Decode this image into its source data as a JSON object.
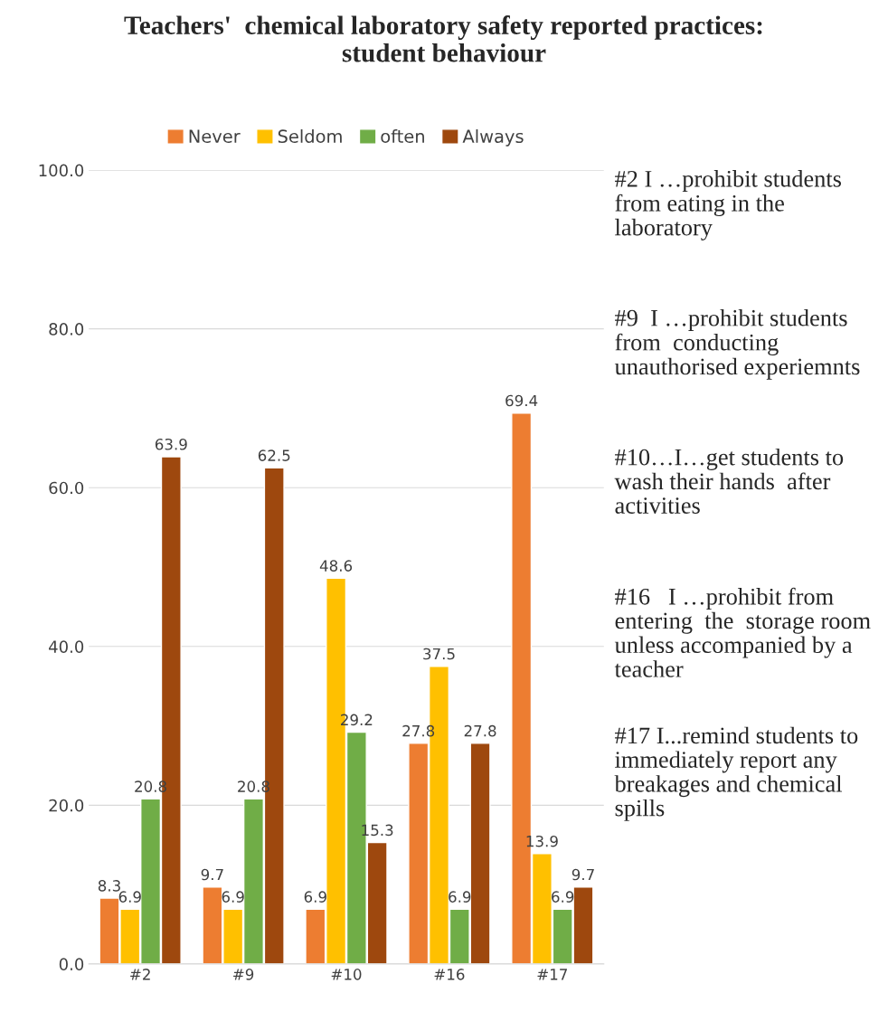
{
  "chart_data": {
    "type": "bar",
    "title": "Teachers'  chemical laboratory safety reported practices: student behaviour",
    "categories": [
      "#2",
      "#9",
      "#10",
      "#16",
      "#17"
    ],
    "series": [
      {
        "name": "Never",
        "color": "#ed7d31",
        "values": [
          8.3,
          9.7,
          6.9,
          27.8,
          69.4
        ]
      },
      {
        "name": "Seldom",
        "color": "#ffc000",
        "values": [
          6.9,
          6.9,
          48.6,
          37.5,
          13.9
        ]
      },
      {
        "name": "often",
        "color": "#70ad47",
        "values": [
          20.8,
          20.8,
          29.2,
          6.9,
          6.9
        ]
      },
      {
        "name": "Always",
        "color": "#9e480e",
        "values": [
          63.9,
          62.5,
          15.3,
          27.8,
          9.7
        ]
      }
    ],
    "ylim": [
      0,
      100
    ],
    "yticks": [
      {
        "value": 0,
        "label": "0.0"
      },
      {
        "value": 20,
        "label": "20.0"
      },
      {
        "value": 40,
        "label": "40.0"
      },
      {
        "value": 60,
        "label": "60.0"
      },
      {
        "value": 80,
        "label": "80.0"
      },
      {
        "value": 100,
        "label": "100.0"
      }
    ],
    "grid": "y",
    "legend": "top",
    "data_labels": true,
    "annotations": [
      "#2 I …prohibit students from eating in the laboratory",
      "#9  I …prohibit students from  conducting unauthorised experiemnts",
      "#10…I…get students to wash their hands  after activities",
      "#16   I …prohibit from entering  the  storage room unless accompanied by a teacher",
      "#17 I...remind students to immediately report any breakages and chemical spills"
    ]
  }
}
